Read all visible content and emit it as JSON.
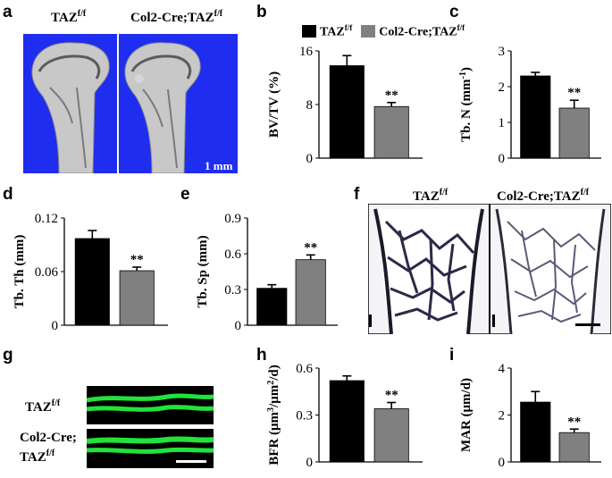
{
  "panels": {
    "a": {
      "letter": "a",
      "label_left": "TAZ",
      "label_right_prefix": "Col2-Cre;TAZ",
      "sup": "f/f",
      "scale_text": "1 mm"
    },
    "b": {
      "letter": "b"
    },
    "c": {
      "letter": "c"
    },
    "d": {
      "letter": "d"
    },
    "e": {
      "letter": "e"
    },
    "f": {
      "letter": "f",
      "label_left": "TAZ",
      "label_right_prefix": "Col2-Cre;TAZ",
      "sup": "f/f"
    },
    "g": {
      "letter": "g",
      "row1_prefix": "TAZ",
      "row2_line1": "Col2-Cre;",
      "row2_prefix": "TAZ",
      "sup": "f/f"
    },
    "h": {
      "letter": "h"
    },
    "i": {
      "letter": "i"
    }
  },
  "legend": {
    "entries": [
      {
        "name": "TAZ",
        "sup": "f/f",
        "color": "#000000"
      },
      {
        "name": "Col2-Cre;TAZ",
        "sup": "f/f",
        "color": "#808080"
      }
    ]
  },
  "colors": {
    "control": "#000000",
    "mutant": "#808080",
    "micro_ct_bg": "#1f2df0",
    "calcein": "#22e33a"
  },
  "chart_data": [
    {
      "id": "b",
      "type": "bar",
      "ylabel": "BV/TV (%)",
      "ylim": [
        0,
        16
      ],
      "yticks": [
        "0",
        "8",
        "16"
      ],
      "values": [
        13.8,
        7.7
      ],
      "errors": [
        1.5,
        0.6
      ],
      "sig": "**"
    },
    {
      "id": "c",
      "type": "bar",
      "ylabel": "Tb. N (mm",
      "ylabel_sup": "-1",
      "ylabel_end": ")",
      "ylim": [
        0,
        3
      ],
      "yticks": [
        "0",
        "1",
        "2",
        "3"
      ],
      "values": [
        2.3,
        1.4
      ],
      "errors": [
        0.1,
        0.22
      ],
      "sig": "**"
    },
    {
      "id": "d",
      "type": "bar",
      "ylabel": "Tb. Th (mm)",
      "ylim": [
        0,
        0.12
      ],
      "yticks": [
        "0",
        "0.06",
        "0.12"
      ],
      "values": [
        0.097,
        0.061
      ],
      "errors": [
        0.009,
        0.004
      ],
      "sig": "**"
    },
    {
      "id": "e",
      "type": "bar",
      "ylabel": "Tb. Sp (mm)",
      "ylim": [
        0,
        0.9
      ],
      "yticks": [
        "0",
        "0.3",
        "0.6",
        "0.9"
      ],
      "values": [
        0.31,
        0.55
      ],
      "errors": [
        0.03,
        0.04
      ],
      "sig": "**"
    },
    {
      "id": "h",
      "type": "bar",
      "ylabel": "BFR (μm",
      "ylabel_sup": "3",
      "ylabel_mid": "/μm",
      "ylabel_sup2": "2",
      "ylabel_end": "/d)",
      "ylim": [
        0,
        0.6
      ],
      "yticks": [
        "0",
        "0.3",
        "0.6"
      ],
      "values": [
        0.52,
        0.34
      ],
      "errors": [
        0.03,
        0.04
      ],
      "sig": "**"
    },
    {
      "id": "i",
      "type": "bar",
      "ylabel": "MAR (μm/d)",
      "ylim": [
        0,
        4
      ],
      "yticks": [
        "0",
        "2",
        "4"
      ],
      "values": [
        2.55,
        1.25
      ],
      "errors": [
        0.45,
        0.15
      ],
      "sig": "**"
    }
  ]
}
